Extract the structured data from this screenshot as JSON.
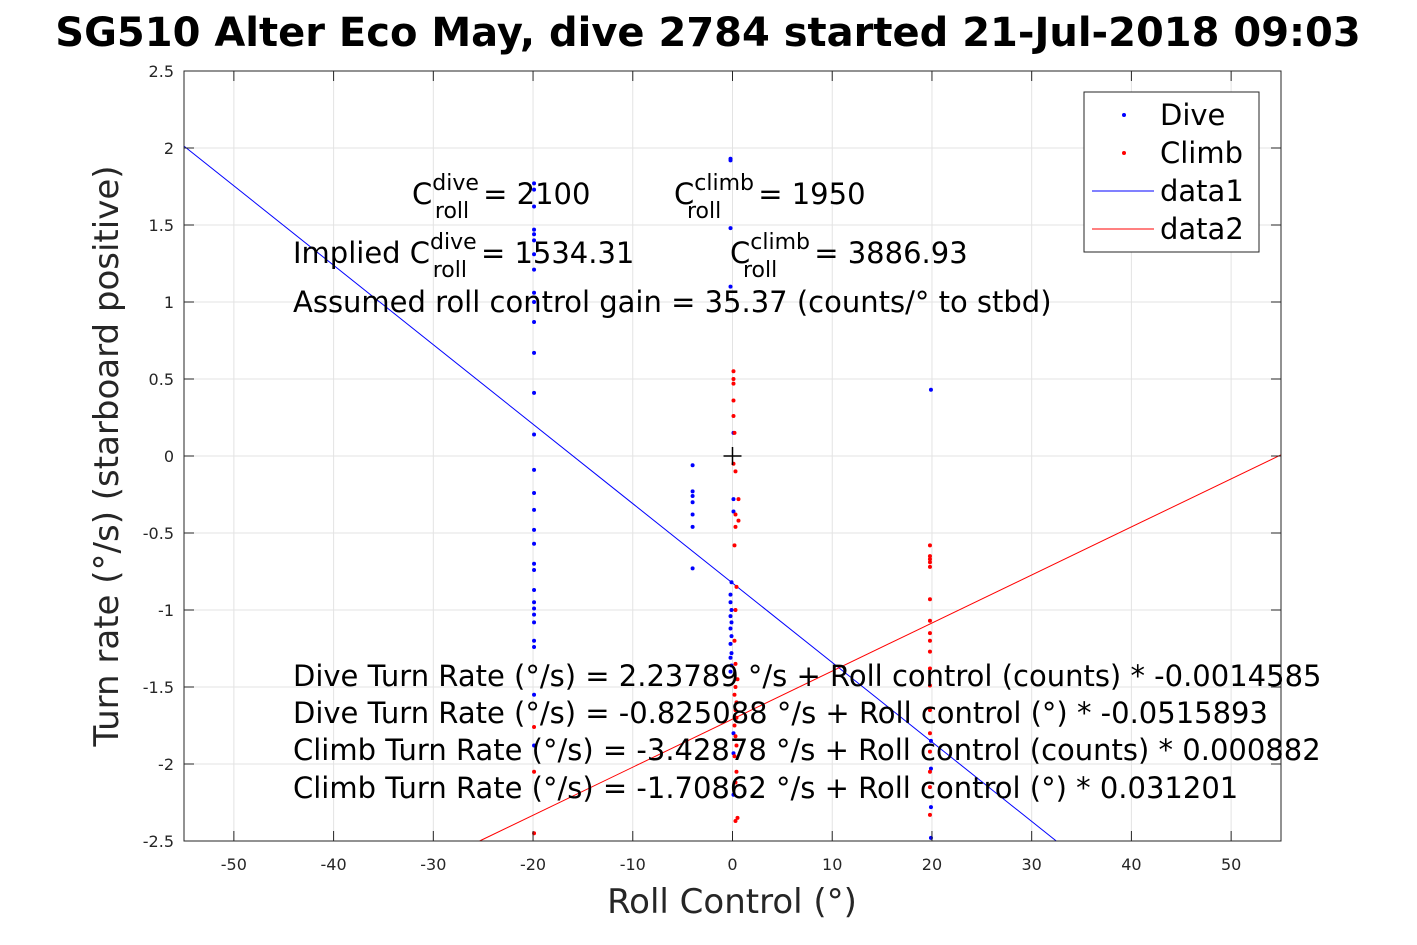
{
  "chart_data": {
    "type": "scatter",
    "title": "SG510 Alter Eco May, dive 2784 started 21-Jul-2018 09:03",
    "xlabel": "Roll Control (°)",
    "ylabel": "Turn rate (°/s) (starboard positive)",
    "xlim": [
      -55,
      55
    ],
    "ylim": [
      -2.5,
      2.5
    ],
    "x_ticks": [
      -50,
      -40,
      -30,
      -20,
      -10,
      0,
      10,
      20,
      30,
      40,
      50
    ],
    "y_ticks": [
      -2.5,
      -2,
      -1.5,
      -1,
      -0.5,
      0,
      0.5,
      1,
      1.5,
      2,
      2.5
    ],
    "grid": true,
    "legend_position": "top-right",
    "series": [
      {
        "name": "Dive",
        "type": "scatter",
        "color": "#0000ff",
        "points": [
          [
            -19.9,
            1.77
          ],
          [
            -19.9,
            1.73
          ],
          [
            -19.9,
            1.62
          ],
          [
            -19.9,
            1.47
          ],
          [
            -19.9,
            1.44
          ],
          [
            -19.9,
            1.4
          ],
          [
            -19.9,
            1.31
          ],
          [
            -19.9,
            1.21
          ],
          [
            -19.9,
            1.06
          ],
          [
            -19.9,
            1.0
          ],
          [
            -19.9,
            0.87
          ],
          [
            -19.9,
            0.67
          ],
          [
            -19.9,
            0.41
          ],
          [
            -19.9,
            0.14
          ],
          [
            -19.9,
            -0.09
          ],
          [
            -19.9,
            -0.24
          ],
          [
            -19.9,
            -0.35
          ],
          [
            -19.9,
            -0.48
          ],
          [
            -19.9,
            -0.57
          ],
          [
            -19.9,
            -0.7
          ],
          [
            -19.9,
            -0.74
          ],
          [
            -19.9,
            -0.87
          ],
          [
            -19.9,
            -0.95
          ],
          [
            -19.9,
            -0.99
          ],
          [
            -19.9,
            -1.03
          ],
          [
            -19.9,
            -1.08
          ],
          [
            -19.9,
            -1.2
          ],
          [
            -19.9,
            -1.24
          ],
          [
            -19.9,
            -1.55
          ],
          [
            -19.9,
            -1.88
          ],
          [
            -4.0,
            -0.06
          ],
          [
            -4.0,
            -0.23
          ],
          [
            -4.0,
            -0.26
          ],
          [
            -4.0,
            -0.3
          ],
          [
            -4.0,
            -0.38
          ],
          [
            -4.0,
            -0.46
          ],
          [
            -4.0,
            -0.73
          ],
          [
            -0.2,
            1.93
          ],
          [
            -0.2,
            1.92
          ],
          [
            -0.2,
            1.48
          ],
          [
            -0.2,
            1.1
          ],
          [
            0.1,
            0.15
          ],
          [
            0.1,
            -0.28
          ],
          [
            0.1,
            -0.36
          ],
          [
            -0.1,
            -0.82
          ],
          [
            -0.2,
            -0.9
          ],
          [
            -0.2,
            -0.95
          ],
          [
            -0.1,
            -1.0
          ],
          [
            -0.2,
            -1.04
          ],
          [
            -0.1,
            -1.08
          ],
          [
            -0.2,
            -1.12
          ],
          [
            -0.1,
            -1.17
          ],
          [
            -0.2,
            -1.22
          ],
          [
            -0.1,
            -1.28
          ],
          [
            -0.2,
            -1.31
          ],
          [
            -0.1,
            -1.36
          ],
          [
            -0.2,
            -1.4
          ],
          [
            0.1,
            -1.8
          ],
          [
            0.1,
            -1.93
          ],
          [
            0.1,
            -2.2
          ],
          [
            19.9,
            0.43
          ],
          [
            19.9,
            -1.85
          ],
          [
            19.9,
            -2.03
          ],
          [
            19.9,
            -2.28
          ],
          [
            19.9,
            -2.48
          ]
        ]
      },
      {
        "name": "Climb",
        "type": "scatter",
        "color": "#ff0000",
        "points": [
          [
            -19.9,
            -1.76
          ],
          [
            -19.9,
            -2.05
          ],
          [
            -19.9,
            -2.45
          ],
          [
            0.1,
            0.55
          ],
          [
            0.1,
            0.5
          ],
          [
            0.1,
            0.47
          ],
          [
            0.1,
            0.36
          ],
          [
            0.1,
            0.26
          ],
          [
            0.2,
            0.15
          ],
          [
            0.1,
            -0.05
          ],
          [
            0.3,
            -0.1
          ],
          [
            0.6,
            -0.28
          ],
          [
            0.3,
            -0.38
          ],
          [
            0.6,
            -0.42
          ],
          [
            0.3,
            -0.46
          ],
          [
            0.2,
            -0.58
          ],
          [
            0.4,
            -0.85
          ],
          [
            0.3,
            -1.0
          ],
          [
            0.2,
            -1.2
          ],
          [
            0.3,
            -1.35
          ],
          [
            0.5,
            -1.45
          ],
          [
            0.3,
            -1.5
          ],
          [
            0.2,
            -1.55
          ],
          [
            0.4,
            -1.6
          ],
          [
            0.3,
            -1.65
          ],
          [
            0.4,
            -1.7
          ],
          [
            0.2,
            -1.75
          ],
          [
            0.3,
            -1.82
          ],
          [
            0.4,
            -1.88
          ],
          [
            0.2,
            -1.95
          ],
          [
            0.4,
            -2.05
          ],
          [
            0.3,
            -2.12
          ],
          [
            0.5,
            -2.35
          ],
          [
            0.3,
            -2.37
          ],
          [
            19.8,
            -0.58
          ],
          [
            19.8,
            -0.65
          ],
          [
            19.8,
            -0.67
          ],
          [
            19.8,
            -0.69
          ],
          [
            19.8,
            -0.72
          ],
          [
            19.8,
            -0.93
          ],
          [
            19.8,
            -1.07
          ],
          [
            19.8,
            -1.15
          ],
          [
            19.8,
            -1.2
          ],
          [
            19.8,
            -1.27
          ],
          [
            19.8,
            -1.38
          ],
          [
            19.8,
            -1.49
          ],
          [
            19.8,
            -1.65
          ],
          [
            19.8,
            -1.8
          ],
          [
            19.8,
            -1.92
          ],
          [
            19.8,
            -2.05
          ],
          [
            19.8,
            -2.15
          ],
          [
            19.8,
            -2.33
          ]
        ]
      },
      {
        "name": "data1",
        "type": "line",
        "color": "#0000ff",
        "intercept": -0.825088,
        "slope": -0.0515893
      },
      {
        "name": "data2",
        "type": "line",
        "color": "#ff0000",
        "intercept": -1.70862,
        "slope": 0.031201
      }
    ],
    "marker": {
      "symbol": "+",
      "x": 0,
      "y": 0
    },
    "annotations": {
      "c_dive": {
        "base": "C",
        "sup": "dive",
        "sub": "roll",
        "value": "= 2100"
      },
      "c_climb": {
        "base": "C",
        "sup": "climb",
        "sub": "roll",
        "value": "= 1950"
      },
      "implied_prefix": "Implied C",
      "implied_dive_sup": "dive",
      "implied_dive_sub": "roll",
      "implied_dive_value": "= 1534.31",
      "implied_climb_base": "C",
      "implied_climb_sup": "climb",
      "implied_climb_sub": "roll",
      "implied_climb_value": "= 3886.93",
      "gain": "Assumed roll control gain = 35.37 (counts/° to stbd)",
      "eq1": "Dive Turn Rate (°/s) = 2.23789 °/s + Roll control (counts) * -0.0014585",
      "eq2": "Dive Turn Rate (°/s) = -0.825088 °/s + Roll control (°) * -0.0515893",
      "eq3": "Climb Turn Rate (°/s) = -3.42878 °/s + Roll control (counts) * 0.000882",
      "eq4": "Climb Turn Rate (°/s) = -1.70862 °/s + Roll control (°) * 0.031201"
    }
  }
}
